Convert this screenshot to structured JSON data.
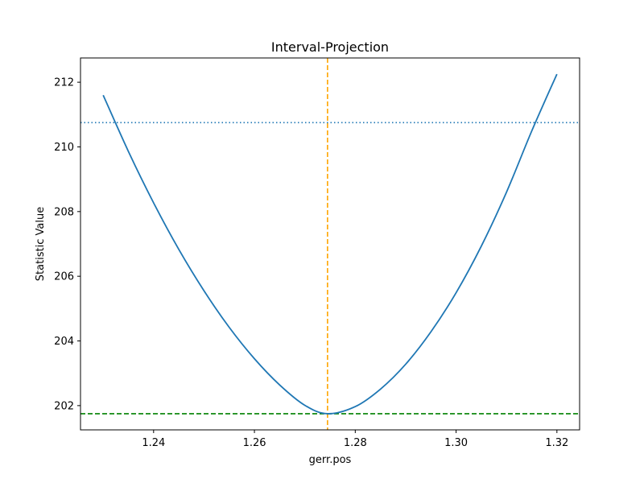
{
  "chart_data": {
    "type": "line",
    "title": "Interval-Projection",
    "xlabel": "gerr.pos",
    "ylabel": "Statistic Value",
    "xlim": [
      1.2255,
      1.3245
    ],
    "ylim": [
      201.25,
      212.75
    ],
    "xticks": [
      1.24,
      1.26,
      1.28,
      1.3,
      1.32
    ],
    "xtick_labels": [
      "1.24",
      "1.26",
      "1.28",
      "1.30",
      "1.32"
    ],
    "yticks": [
      202,
      204,
      206,
      208,
      210,
      212
    ],
    "ytick_labels": [
      "202",
      "204",
      "206",
      "208",
      "210",
      "212"
    ],
    "grid": false,
    "series": [
      {
        "color": "#1f77b4",
        "style": "solid",
        "x": [
          1.23,
          1.235,
          1.24,
          1.245,
          1.25,
          1.255,
          1.26,
          1.265,
          1.27,
          1.2745,
          1.28,
          1.285,
          1.29,
          1.295,
          1.3,
          1.305,
          1.31,
          1.315,
          1.32
        ],
        "y": [
          211.6,
          209.86,
          208.27,
          206.83,
          205.55,
          204.42,
          203.45,
          202.64,
          202.01,
          201.75,
          201.97,
          202.51,
          203.28,
          204.28,
          205.49,
          206.93,
          208.6,
          210.49,
          212.25
        ]
      }
    ],
    "reference_lines": [
      {
        "orientation": "vertical",
        "value": 1.2745,
        "color": "#ffa500",
        "style": "dashed"
      },
      {
        "orientation": "horizontal",
        "value": 201.75,
        "color": "#008000",
        "style": "dashed"
      },
      {
        "orientation": "horizontal",
        "value": 210.75,
        "color": "#1f77b4",
        "style": "dotted"
      }
    ]
  }
}
